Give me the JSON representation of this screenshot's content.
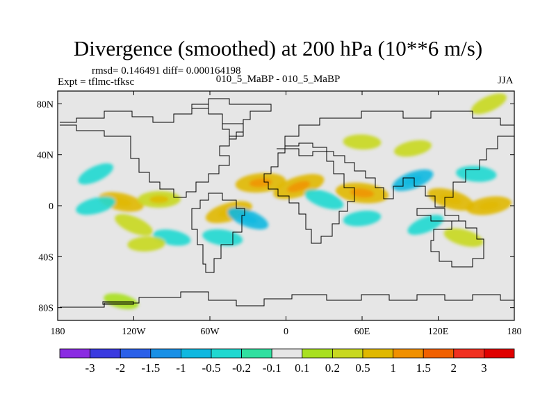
{
  "title": "Divergence (smoothed) at 200 hPa (10**6 m/s)",
  "stats_line": "rmsd= 0.146491 diff= 0.000164198",
  "experiment": "Expt = tflmc-tfksc",
  "case_line": "010_5_MaBP - 010_5_MaBP",
  "season": "JJA",
  "chart_data": {
    "type": "heatmap",
    "projection": "cylindrical-equidistant",
    "xlim": [
      -180,
      180
    ],
    "ylim": [
      -90,
      90
    ],
    "x_ticks": [
      {
        "value": -180,
        "label": "180"
      },
      {
        "value": -120,
        "label": "120W"
      },
      {
        "value": -60,
        "label": "60W"
      },
      {
        "value": 0,
        "label": "0"
      },
      {
        "value": 60,
        "label": "60E"
      },
      {
        "value": 120,
        "label": "120E"
      },
      {
        "value": 180,
        "label": "180"
      }
    ],
    "y_ticks": [
      {
        "value": 80,
        "label": "80N"
      },
      {
        "value": 40,
        "label": "40N"
      },
      {
        "value": 0,
        "label": "0"
      },
      {
        "value": -40,
        "label": "40S"
      },
      {
        "value": -80,
        "label": "80S"
      }
    ],
    "colorbar": {
      "levels": [
        "-3",
        "-2",
        "-1.5",
        "-1",
        "-0.5",
        "-0.2",
        "-0.1",
        "0.1",
        "0.2",
        "0.5",
        "1",
        "1.5",
        "2",
        "3"
      ],
      "colors": [
        "#8a2be2",
        "#3a3ae0",
        "#2a60e8",
        "#1a90e6",
        "#10b8e0",
        "#20d8d0",
        "#30e0a0",
        "#e6e6e6",
        "#a8e020",
        "#c8d820",
        "#e0b800",
        "#f09000",
        "#f06000",
        "#f03020",
        "#e00000"
      ]
    },
    "fields": [
      {
        "lon": -150,
        "lat": 25,
        "value": -0.3
      },
      {
        "lon": -130,
        "lat": 3,
        "value": 0.6
      },
      {
        "lon": -100,
        "lat": 5,
        "value": 0.5
      },
      {
        "lon": -150,
        "lat": 0,
        "value": -0.4
      },
      {
        "lon": -120,
        "lat": -15,
        "value": 0.4
      },
      {
        "lon": -90,
        "lat": -25,
        "value": -0.3
      },
      {
        "lon": -110,
        "lat": -30,
        "value": 0.3
      },
      {
        "lon": -45,
        "lat": -5,
        "value": 0.7
      },
      {
        "lon": -30,
        "lat": -10,
        "value": -0.5
      },
      {
        "lon": -50,
        "lat": -25,
        "value": -0.4
      },
      {
        "lon": -20,
        "lat": 18,
        "value": 0.8
      },
      {
        "lon": 10,
        "lat": 15,
        "value": 0.9
      },
      {
        "lon": 30,
        "lat": 5,
        "value": -0.4
      },
      {
        "lon": 60,
        "lat": 10,
        "value": 0.9
      },
      {
        "lon": 60,
        "lat": -10,
        "value": -0.3
      },
      {
        "lon": 100,
        "lat": 20,
        "value": -0.5
      },
      {
        "lon": 130,
        "lat": 5,
        "value": 0.7
      },
      {
        "lon": 150,
        "lat": 25,
        "value": -0.4
      },
      {
        "lon": 160,
        "lat": 0,
        "value": 0.6
      },
      {
        "lon": 110,
        "lat": -15,
        "value": -0.3
      },
      {
        "lon": 140,
        "lat": -25,
        "value": 0.4
      },
      {
        "lon": 60,
        "lat": 50,
        "value": 0.3
      },
      {
        "lon": 100,
        "lat": 45,
        "value": 0.3
      },
      {
        "lon": 160,
        "lat": 80,
        "value": 0.3
      },
      {
        "lon": -130,
        "lat": -75,
        "value": 0.2
      }
    ]
  }
}
